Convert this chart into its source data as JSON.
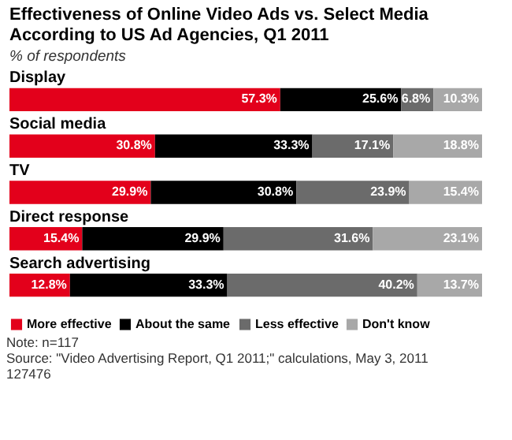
{
  "chart_data": {
    "type": "bar",
    "orientation": "horizontal",
    "stacked": true,
    "title": "Effectiveness of Online Video Ads vs. Select Media According to US Ad Agencies, Q1 2011",
    "subtitle": "% of respondents",
    "categories": [
      "Display",
      "Social media",
      "TV",
      "Direct response",
      "Search advertising"
    ],
    "series": [
      {
        "name": "More effective",
        "color": "#e3001b",
        "values": [
          57.3,
          30.8,
          29.9,
          15.4,
          12.8
        ],
        "value_labels": [
          "57.3%",
          "30.8%",
          "29.9%",
          "15.4%",
          "12.8%"
        ]
      },
      {
        "name": "About the same",
        "color": "#000000",
        "values": [
          25.6,
          33.3,
          30.8,
          29.9,
          33.3
        ],
        "value_labels": [
          "25.6%",
          "33.3%",
          "30.8%",
          "29.9%",
          "33.3%"
        ]
      },
      {
        "name": "Less effective",
        "color": "#6b6b6b",
        "values": [
          6.8,
          17.1,
          23.9,
          31.6,
          40.2
        ],
        "value_labels": [
          "6.8%",
          "17.1%",
          "23.9%",
          "31.6%",
          "40.2%"
        ]
      },
      {
        "name": "Don't know",
        "color": "#a8a8a8",
        "values": [
          10.3,
          18.8,
          15.4,
          23.1,
          13.7
        ],
        "value_labels": [
          "10.3%",
          "18.8%",
          "15.4%",
          "23.1%",
          "13.7%"
        ]
      }
    ],
    "legend": "bottom left",
    "grid": false,
    "annotations": [
      "Note: n=117",
      "Source: \"Video Advertising Report, Q1 2011;\" calculations, May 3, 2011",
      "127476"
    ]
  }
}
